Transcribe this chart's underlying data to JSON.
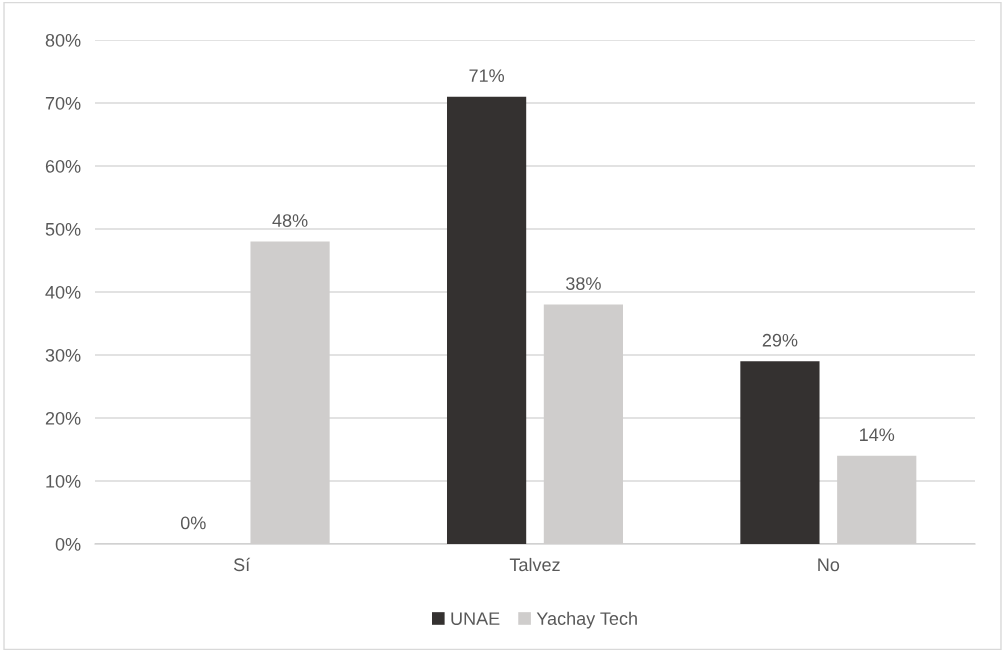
{
  "chart_data": {
    "type": "bar",
    "categories": [
      "Sí",
      "Talvez",
      "No"
    ],
    "series": [
      {
        "name": "UNAE",
        "color": "#343130",
        "values": [
          0,
          71,
          29
        ]
      },
      {
        "name": "Yachay Tech",
        "color": "#cfcdcc",
        "values": [
          48,
          38,
          14
        ]
      }
    ],
    "ylim": [
      0,
      80
    ],
    "yticks": [
      {
        "value": 0,
        "label": "0%"
      },
      {
        "value": 10,
        "label": "10%"
      },
      {
        "value": 20,
        "label": "20%"
      },
      {
        "value": 30,
        "label": "30%"
      },
      {
        "value": 40,
        "label": "40%"
      },
      {
        "value": 50,
        "label": "50%"
      },
      {
        "value": 60,
        "label": "60%"
      },
      {
        "value": 70,
        "label": "70%"
      },
      {
        "value": 80,
        "label": "80%"
      }
    ],
    "value_labels": [
      [
        "0%",
        "71%",
        "29%"
      ],
      [
        "48%",
        "38%",
        "14%"
      ]
    ],
    "grid": "y",
    "legend": "bottom"
  }
}
